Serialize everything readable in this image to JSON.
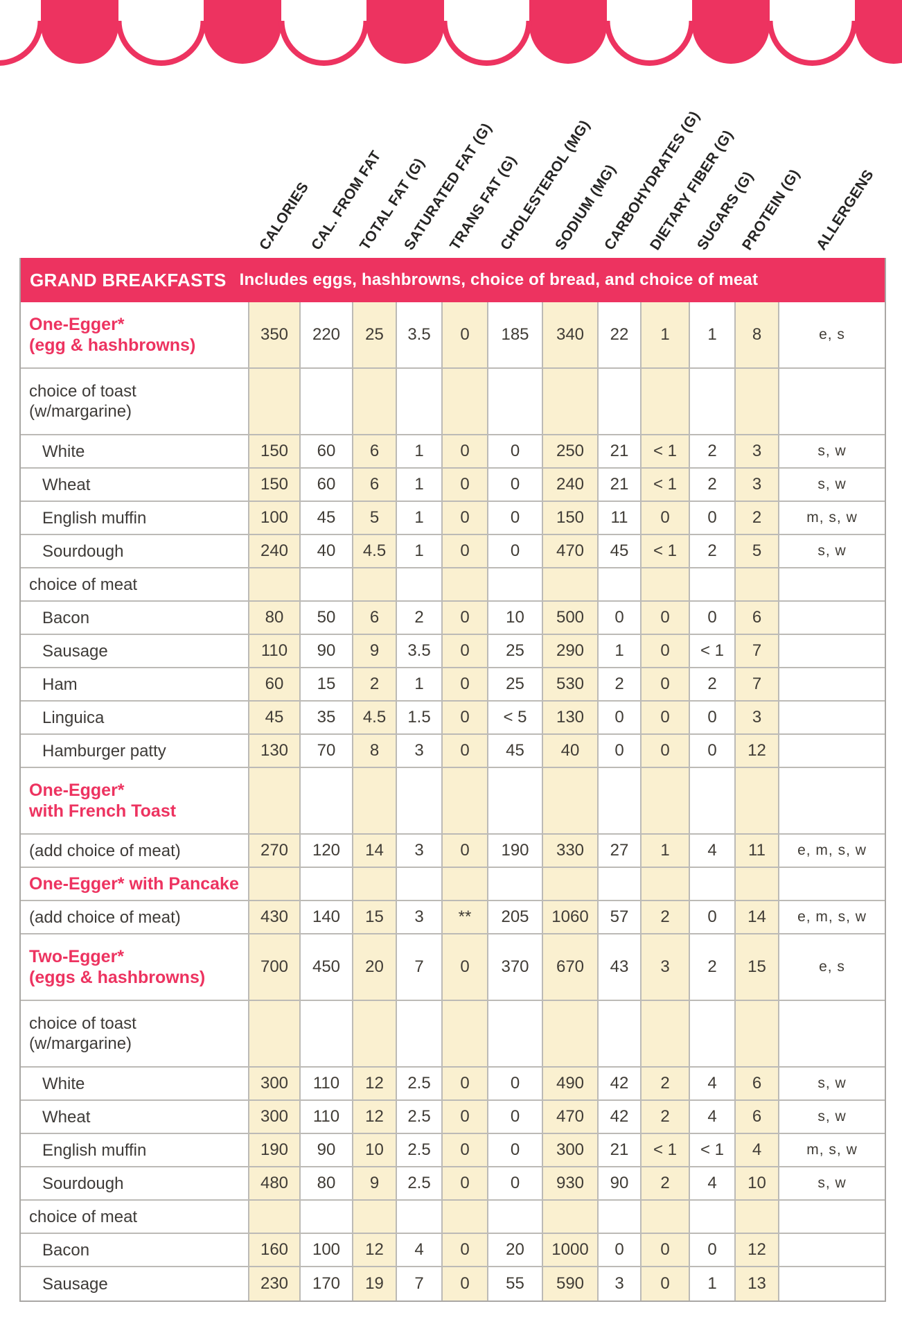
{
  "colors": {
    "accent_pink": "#ed3360",
    "beige": "#faf0d0",
    "border_gray": "#bcbab6",
    "text_dark": "#3e3b38",
    "header_text": "#262524",
    "bar_text": "#ffffff"
  },
  "columns": [
    {
      "key": "calories",
      "label": "CALORIES"
    },
    {
      "key": "cal_from_fat",
      "label": "CAL. FROM FAT"
    },
    {
      "key": "total_fat_g",
      "label": "TOTAL FAT (G)"
    },
    {
      "key": "saturated_fat_g",
      "label": "SATURATED FAT (G)"
    },
    {
      "key": "trans_fat_g",
      "label": "TRANS FAT (G)"
    },
    {
      "key": "cholesterol_mg",
      "label": "CHOLESTEROL (MG)"
    },
    {
      "key": "sodium_mg",
      "label": "SODIUM (MG)"
    },
    {
      "key": "carbohydrates_g",
      "label": "CARBOHYDRATES (G)"
    },
    {
      "key": "dietary_fiber_g",
      "label": "DIETARY FIBER (G)"
    },
    {
      "key": "sugars_g",
      "label": "SUGARS (G)"
    },
    {
      "key": "protein_g",
      "label": "PROTEIN (G)"
    },
    {
      "key": "allergens",
      "label": "ALLERGENS"
    }
  ],
  "table": {
    "section_title": "GRAND BREAKFASTS",
    "section_subtitle": "Includes eggs, hashbrowns, choice of bread, and choice of meat",
    "rows": [
      {
        "label": [
          "One-Egger*",
          "(egg & hashbrowns)"
        ],
        "style": "highlight",
        "lines": 2,
        "values": [
          "350",
          "220",
          "25",
          "3.5",
          "0",
          "185",
          "340",
          "22",
          "1",
          "1",
          "8"
        ],
        "allergens": "e, s"
      },
      {
        "label": [
          "choice of toast",
          "(w/margarine)"
        ],
        "style": "plain",
        "lines": 2,
        "values": [
          "",
          "",
          "",
          "",
          "",
          "",
          "",
          "",
          "",
          "",
          ""
        ],
        "allergens": ""
      },
      {
        "label": [
          "White"
        ],
        "style": "sub",
        "lines": 1,
        "values": [
          "150",
          "60",
          "6",
          "1",
          "0",
          "0",
          "250",
          "21",
          "< 1",
          "2",
          "3"
        ],
        "allergens": "s, w"
      },
      {
        "label": [
          "Wheat"
        ],
        "style": "sub",
        "lines": 1,
        "values": [
          "150",
          "60",
          "6",
          "1",
          "0",
          "0",
          "240",
          "21",
          "< 1",
          "2",
          "3"
        ],
        "allergens": "s, w"
      },
      {
        "label": [
          "English muffin"
        ],
        "style": "sub",
        "lines": 1,
        "values": [
          "100",
          "45",
          "5",
          "1",
          "0",
          "0",
          "150",
          "11",
          "0",
          "0",
          "2"
        ],
        "allergens": "m, s, w"
      },
      {
        "label": [
          "Sourdough"
        ],
        "style": "sub",
        "lines": 1,
        "values": [
          "240",
          "40",
          "4.5",
          "1",
          "0",
          "0",
          "470",
          "45",
          "< 1",
          "2",
          "5"
        ],
        "allergens": "s, w"
      },
      {
        "label": [
          "choice of meat"
        ],
        "style": "plain",
        "lines": 1,
        "values": [
          "",
          "",
          "",
          "",
          "",
          "",
          "",
          "",
          "",
          "",
          ""
        ],
        "allergens": ""
      },
      {
        "label": [
          "Bacon"
        ],
        "style": "sub",
        "lines": 1,
        "values": [
          "80",
          "50",
          "6",
          "2",
          "0",
          "10",
          "500",
          "0",
          "0",
          "0",
          "6"
        ],
        "allergens": ""
      },
      {
        "label": [
          "Sausage"
        ],
        "style": "sub",
        "lines": 1,
        "values": [
          "110",
          "90",
          "9",
          "3.5",
          "0",
          "25",
          "290",
          "1",
          "0",
          "< 1",
          "7"
        ],
        "allergens": ""
      },
      {
        "label": [
          "Ham"
        ],
        "style": "sub",
        "lines": 1,
        "values": [
          "60",
          "15",
          "2",
          "1",
          "0",
          "25",
          "530",
          "2",
          "0",
          "2",
          "7"
        ],
        "allergens": ""
      },
      {
        "label": [
          "Linguica"
        ],
        "style": "sub",
        "lines": 1,
        "values": [
          "45",
          "35",
          "4.5",
          "1.5",
          "0",
          "< 5",
          "130",
          "0",
          "0",
          "0",
          "3"
        ],
        "allergens": ""
      },
      {
        "label": [
          "Hamburger patty"
        ],
        "style": "sub",
        "lines": 1,
        "values": [
          "130",
          "70",
          "8",
          "3",
          "0",
          "45",
          "40",
          "0",
          "0",
          "0",
          "12"
        ],
        "allergens": ""
      },
      {
        "label": [
          "One-Egger*",
          "with French Toast"
        ],
        "style": "highlight",
        "lines": 2,
        "values": [
          "",
          "",
          "",
          "",
          "",
          "",
          "",
          "",
          "",
          "",
          ""
        ],
        "allergens": ""
      },
      {
        "label": [
          "(add choice of meat)"
        ],
        "style": "plain",
        "lines": 1,
        "values": [
          "270",
          "120",
          "14",
          "3",
          "0",
          "190",
          "330",
          "27",
          "1",
          "4",
          "11"
        ],
        "allergens": "e, m, s, w"
      },
      {
        "label": [
          "One-Egger* with Pancake"
        ],
        "style": "highlight",
        "lines": 1,
        "values": [
          "",
          "",
          "",
          "",
          "",
          "",
          "",
          "",
          "",
          "",
          ""
        ],
        "allergens": ""
      },
      {
        "label": [
          "(add choice of meat)"
        ],
        "style": "plain",
        "lines": 1,
        "values": [
          "430",
          "140",
          "15",
          "3",
          "**",
          "205",
          "1060",
          "57",
          "2",
          "0",
          "14"
        ],
        "allergens": "e, m, s, w"
      },
      {
        "label": [
          "Two-Egger*",
          "(eggs & hashbrowns)"
        ],
        "style": "highlight",
        "lines": 2,
        "values": [
          "700",
          "450",
          "20",
          "7",
          "0",
          "370",
          "670",
          "43",
          "3",
          "2",
          "15"
        ],
        "allergens": "e, s"
      },
      {
        "label": [
          "choice of toast",
          "(w/margarine)"
        ],
        "style": "plain",
        "lines": 2,
        "values": [
          "",
          "",
          "",
          "",
          "",
          "",
          "",
          "",
          "",
          "",
          ""
        ],
        "allergens": ""
      },
      {
        "label": [
          "White"
        ],
        "style": "sub",
        "lines": 1,
        "values": [
          "300",
          "110",
          "12",
          "2.5",
          "0",
          "0",
          "490",
          "42",
          "2",
          "4",
          "6"
        ],
        "allergens": "s, w"
      },
      {
        "label": [
          "Wheat"
        ],
        "style": "sub",
        "lines": 1,
        "values": [
          "300",
          "110",
          "12",
          "2.5",
          "0",
          "0",
          "470",
          "42",
          "2",
          "4",
          "6"
        ],
        "allergens": "s, w"
      },
      {
        "label": [
          "English muffin"
        ],
        "style": "sub",
        "lines": 1,
        "values": [
          "190",
          "90",
          "10",
          "2.5",
          "0",
          "0",
          "300",
          "21",
          "< 1",
          "< 1",
          "4"
        ],
        "allergens": "m, s, w"
      },
      {
        "label": [
          "Sourdough"
        ],
        "style": "sub",
        "lines": 1,
        "values": [
          "480",
          "80",
          "9",
          "2.5",
          "0",
          "0",
          "930",
          "90",
          "2",
          "4",
          "10"
        ],
        "allergens": "s, w"
      },
      {
        "label": [
          "choice of meat"
        ],
        "style": "plain",
        "lines": 1,
        "values": [
          "",
          "",
          "",
          "",
          "",
          "",
          "",
          "",
          "",
          "",
          ""
        ],
        "allergens": ""
      },
      {
        "label": [
          "Bacon"
        ],
        "style": "sub",
        "lines": 1,
        "values": [
          "160",
          "100",
          "12",
          "4",
          "0",
          "20",
          "1000",
          "0",
          "0",
          "0",
          "12"
        ],
        "allergens": ""
      },
      {
        "label": [
          "Sausage"
        ],
        "style": "sub",
        "lines": 1,
        "values": [
          "230",
          "170",
          "19",
          "7",
          "0",
          "55",
          "590",
          "3",
          "0",
          "1",
          "13"
        ],
        "allergens": ""
      }
    ]
  }
}
